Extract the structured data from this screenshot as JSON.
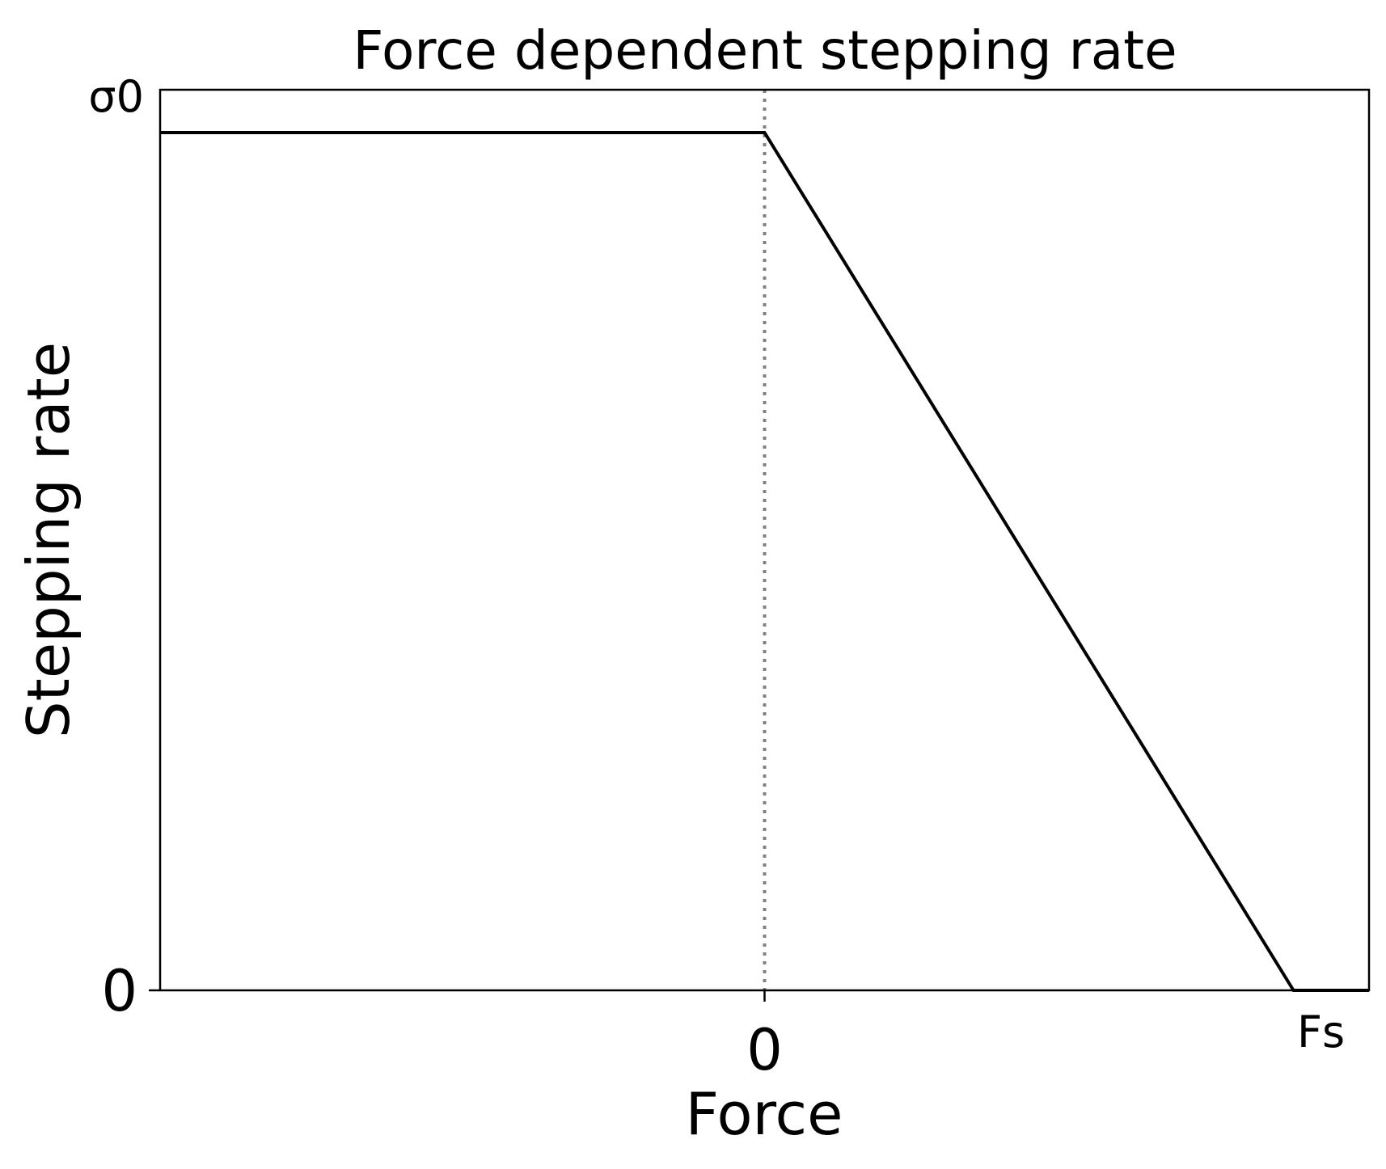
{
  "chart_data": {
    "type": "line",
    "title": "Force dependent stepping rate",
    "xlabel": "Force",
    "ylabel": "Stepping rate",
    "xlim": [
      -0.8,
      0.8
    ],
    "ylim": [
      0,
      1.05
    ],
    "grid": false,
    "x_ticks": [
      {
        "value": 0,
        "label": "0"
      },
      {
        "value": 0.7,
        "label": "Fs"
      }
    ],
    "y_ticks": [
      {
        "value": 0,
        "label": "0"
      },
      {
        "value": 1.0,
        "label": "σ0"
      }
    ],
    "series": [
      {
        "x": [
          -0.8,
          0,
          0.7,
          0.8
        ],
        "y": [
          1.0,
          1.0,
          0,
          0
        ],
        "color": "#000000"
      }
    ],
    "reference_lines": [
      {
        "orientation": "vertical",
        "x": 0,
        "style": "dotted",
        "color": "#808080"
      }
    ]
  }
}
